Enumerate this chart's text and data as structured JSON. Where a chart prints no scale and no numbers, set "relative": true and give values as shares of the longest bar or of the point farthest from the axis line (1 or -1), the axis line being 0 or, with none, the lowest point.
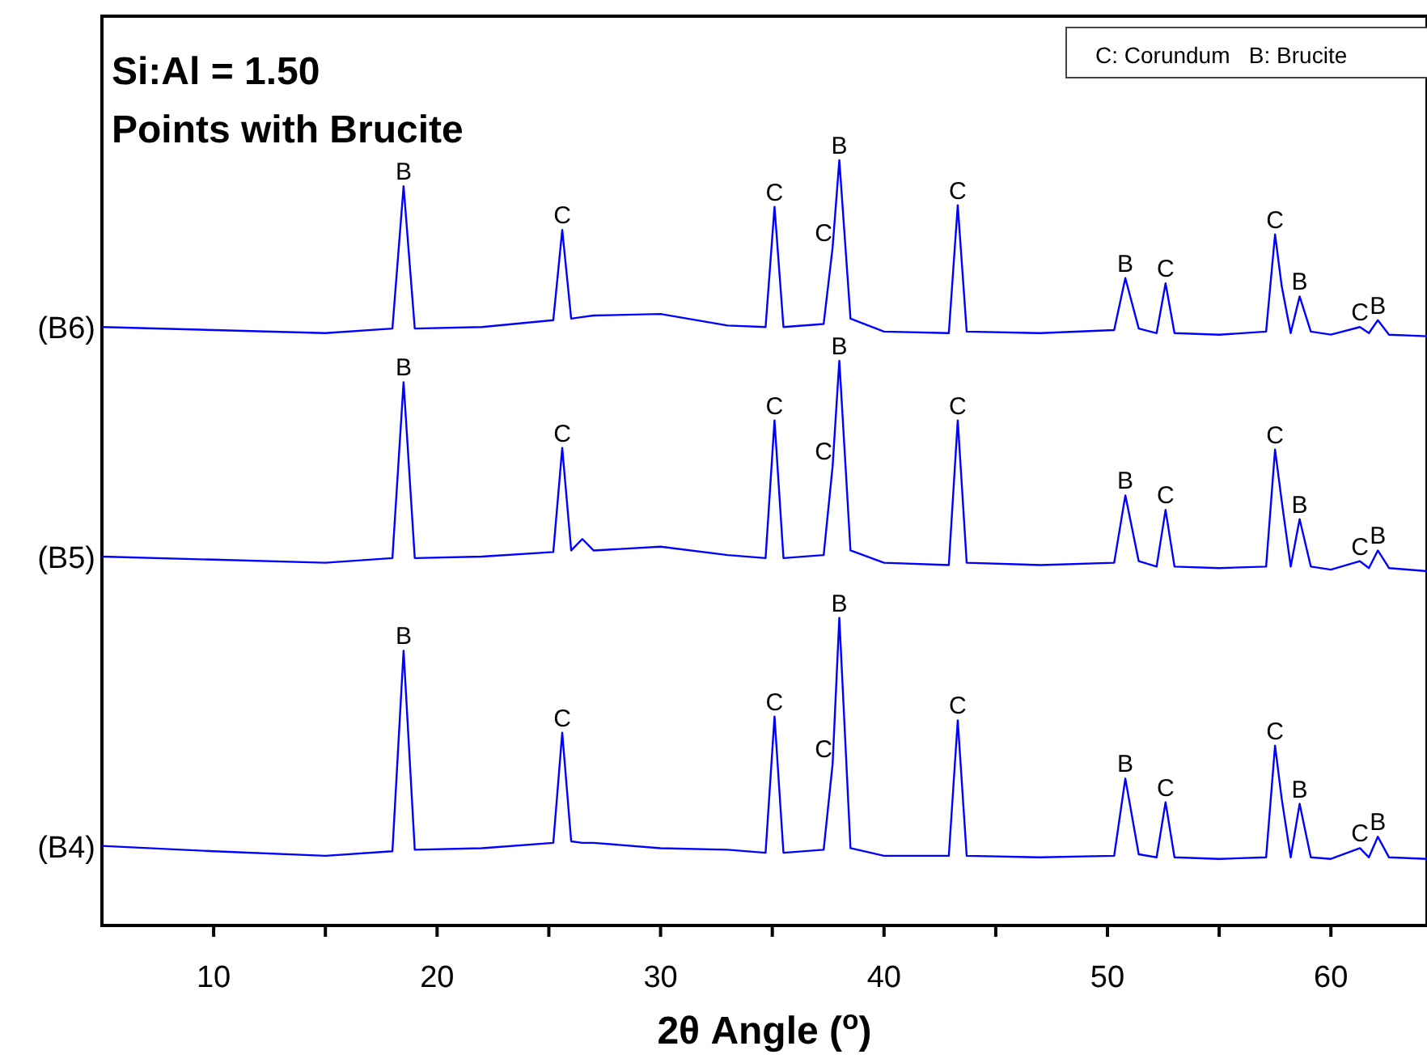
{
  "chart_data": {
    "type": "line",
    "title": "Si:Al = 1.50",
    "subtitle": "Points with Brucite",
    "xlabel": "2θ Angle ($^{o}$)",
    "relative": true,
    "grid": false,
    "marker": "none",
    "line_style": "solid",
    "xlim": [
      5,
      64.3
    ],
    "xticks": [
      10,
      {
        "value": 15,
        "label": null
      },
      20,
      {
        "value": 25,
        "label": null
      },
      30,
      {
        "value": 35,
        "label": null
      },
      40,
      {
        "value": 45,
        "label": null
      },
      50,
      {
        "value": 55,
        "label": null
      },
      60
    ],
    "x": [
      5,
      10,
      15,
      18.0,
      18.5,
      19.0,
      22,
      25.2,
      25.6,
      26.0,
      26.5,
      27,
      30,
      33,
      34.7,
      35.1,
      35.5,
      37.3,
      37.7,
      38.0,
      38.5,
      40,
      42.9,
      43.3,
      43.7,
      47,
      50.3,
      50.8,
      51.4,
      52.2,
      52.6,
      53.0,
      55,
      57.1,
      57.5,
      57.8,
      58.2,
      58.6,
      59.1,
      60,
      61.3,
      61.7,
      62.1,
      62.6,
      64.3
    ],
    "series": [
      {
        "name": "(B6)",
        "color": "#0000ff",
        "values": [
          0.782,
          0.778,
          0.774,
          0.78,
          0.966,
          0.78,
          0.782,
          0.791,
          0.909,
          0.793,
          0.795,
          0.797,
          0.799,
          0.784,
          0.782,
          0.939,
          0.782,
          0.786,
          0.886,
          1.0,
          0.793,
          0.776,
          0.774,
          0.941,
          0.776,
          0.774,
          0.778,
          0.846,
          0.78,
          0.774,
          0.839,
          0.774,
          0.772,
          0.776,
          0.903,
          0.835,
          0.774,
          0.822,
          0.776,
          0.772,
          0.782,
          0.774,
          0.791,
          0.772,
          0.77
        ]
      },
      {
        "name": "(B5)",
        "color": "#0000ff",
        "values": [
          0.482,
          0.478,
          0.474,
          0.48,
          0.71,
          0.48,
          0.482,
          0.488,
          0.624,
          0.49,
          0.505,
          0.49,
          0.495,
          0.484,
          0.48,
          0.66,
          0.48,
          0.484,
          0.6,
          0.738,
          0.49,
          0.474,
          0.471,
          0.66,
          0.474,
          0.471,
          0.474,
          0.562,
          0.476,
          0.469,
          0.543,
          0.469,
          0.467,
          0.469,
          0.622,
          0.554,
          0.469,
          0.531,
          0.469,
          0.465,
          0.476,
          0.467,
          0.49,
          0.467,
          0.463
        ]
      },
      {
        "name": "(B4)",
        "color": "#0000ff",
        "values": [
          0.104,
          0.097,
          0.091,
          0.097,
          0.359,
          0.099,
          0.101,
          0.108,
          0.252,
          0.11,
          0.108,
          0.108,
          0.101,
          0.099,
          0.095,
          0.273,
          0.095,
          0.099,
          0.211,
          0.402,
          0.101,
          0.091,
          0.091,
          0.268,
          0.091,
          0.089,
          0.091,
          0.192,
          0.093,
          0.089,
          0.161,
          0.089,
          0.087,
          0.089,
          0.235,
          0.165,
          0.089,
          0.159,
          0.089,
          0.087,
          0.101,
          0.089,
          0.116,
          0.089,
          0.087
        ]
      }
    ],
    "annotations": [
      "C: Corundum   B: Brucite",
      {
        "text": "B",
        "x": 18.5,
        "y": 0.966
      },
      {
        "text": "C",
        "x": 25.6,
        "y": 0.909
      },
      {
        "text": "C",
        "x": 35.1,
        "y": 0.939
      },
      {
        "text": "C",
        "x": 37.3,
        "y": 0.886
      },
      {
        "text": "B",
        "x": 38.0,
        "y": 1.0
      },
      {
        "text": "C",
        "x": 43.3,
        "y": 0.941
      },
      {
        "text": "B",
        "x": 50.8,
        "y": 0.846
      },
      {
        "text": "C",
        "x": 52.6,
        "y": 0.839
      },
      {
        "text": "C",
        "x": 57.5,
        "y": 0.903
      },
      {
        "text": "B",
        "x": 58.6,
        "y": 0.822
      },
      {
        "text": "C",
        "x": 61.3,
        "y": 0.782
      },
      {
        "text": "B",
        "x": 62.1,
        "y": 0.791
      },
      {
        "text": "B",
        "x": 18.5,
        "y": 0.71
      },
      {
        "text": "C",
        "x": 25.6,
        "y": 0.624
      },
      {
        "text": "C",
        "x": 35.1,
        "y": 0.66
      },
      {
        "text": "C",
        "x": 37.3,
        "y": 0.6
      },
      {
        "text": "B",
        "x": 38.0,
        "y": 0.738
      },
      {
        "text": "C",
        "x": 43.3,
        "y": 0.66
      },
      {
        "text": "B",
        "x": 50.8,
        "y": 0.562
      },
      {
        "text": "C",
        "x": 52.6,
        "y": 0.543
      },
      {
        "text": "C",
        "x": 57.5,
        "y": 0.622
      },
      {
        "text": "B",
        "x": 58.6,
        "y": 0.531
      },
      {
        "text": "C",
        "x": 61.3,
        "y": 0.476
      },
      {
        "text": "B",
        "x": 62.1,
        "y": 0.49
      },
      {
        "text": "B",
        "x": 18.5,
        "y": 0.359
      },
      {
        "text": "C",
        "x": 25.6,
        "y": 0.252
      },
      {
        "text": "C",
        "x": 35.1,
        "y": 0.273
      },
      {
        "text": "C",
        "x": 37.3,
        "y": 0.211
      },
      {
        "text": "B",
        "x": 38.0,
        "y": 0.402
      },
      {
        "text": "C",
        "x": 43.3,
        "y": 0.268
      },
      {
        "text": "B",
        "x": 50.8,
        "y": 0.192
      },
      {
        "text": "C",
        "x": 52.6,
        "y": 0.161
      },
      {
        "text": "C",
        "x": 57.5,
        "y": 0.235
      },
      {
        "text": "B",
        "x": 58.6,
        "y": 0.159
      },
      {
        "text": "C",
        "x": 61.3,
        "y": 0.101
      },
      {
        "text": "B",
        "x": 62.1,
        "y": 0.116
      }
    ]
  }
}
